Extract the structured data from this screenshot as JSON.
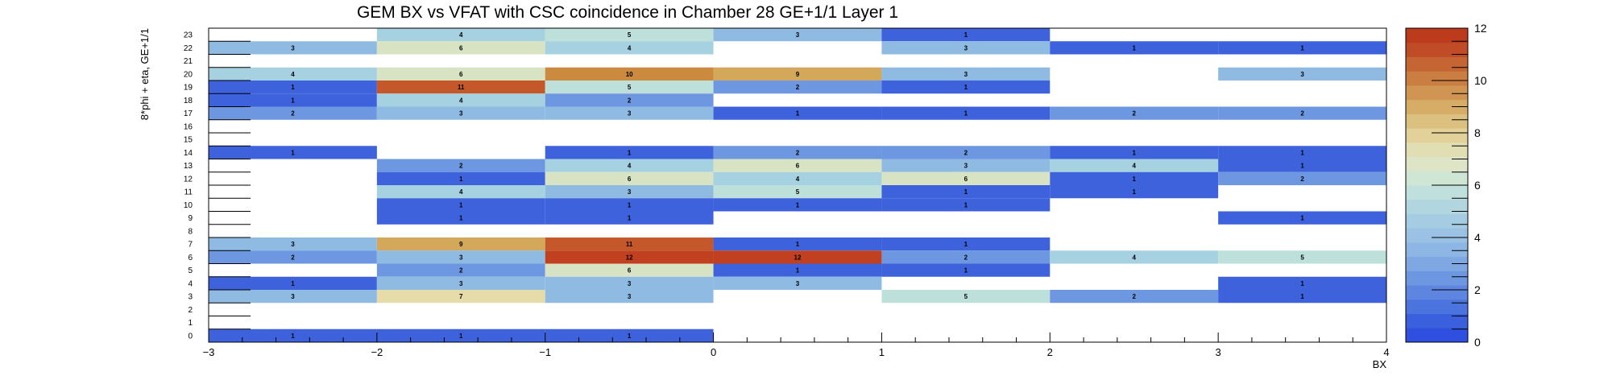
{
  "chart_data": {
    "type": "heatmap",
    "title": "GEM BX vs VFAT with CSC coincidence in Chamber 28 GE+1/1 Layer 1",
    "xlabel": "BX",
    "ylabel": "8*phi + eta, GE+1/1",
    "xlim": [
      -3,
      4
    ],
    "ylim": [
      0,
      24
    ],
    "x_ticks": [
      "−3",
      "−2",
      "−1",
      "0",
      "1",
      "2",
      "3",
      "4"
    ],
    "y_ticks": [
      "0",
      "1",
      "2",
      "3",
      "4",
      "5",
      "6",
      "7",
      "8",
      "9",
      "10",
      "11",
      "12",
      "13",
      "14",
      "15",
      "16",
      "17",
      "18",
      "19",
      "20",
      "21",
      "22",
      "23"
    ],
    "colorbar": {
      "range": [
        0,
        12
      ],
      "ticks": [
        "0",
        "2",
        "4",
        "6",
        "8",
        "10",
        "12"
      ]
    },
    "x_bins": [
      -3,
      -2,
      -1,
      0,
      1,
      2,
      3
    ],
    "x_bin_width": 1,
    "cells": [
      {
        "x": -3,
        "y": 23,
        "v": null
      },
      {
        "x": -2,
        "y": 23,
        "v": 4
      },
      {
        "x": -1,
        "y": 23,
        "v": 5
      },
      {
        "x": 0,
        "y": 23,
        "v": 3
      },
      {
        "x": 1,
        "y": 23,
        "v": 1
      },
      {
        "x": -3,
        "y": 22,
        "v": 3
      },
      {
        "x": -2,
        "y": 22,
        "v": 6
      },
      {
        "x": -1,
        "y": 22,
        "v": 4
      },
      {
        "x": 1,
        "y": 22,
        "v": 3
      },
      {
        "x": 2,
        "y": 22,
        "v": 1
      },
      {
        "x": 3,
        "y": 22,
        "v": 1
      },
      {
        "x": -3,
        "y": 20,
        "v": 4
      },
      {
        "x": -2,
        "y": 20,
        "v": 6
      },
      {
        "x": -1,
        "y": 20,
        "v": 10
      },
      {
        "x": 0,
        "y": 20,
        "v": 9
      },
      {
        "x": 1,
        "y": 20,
        "v": 3
      },
      {
        "x": 3,
        "y": 20,
        "v": 3
      },
      {
        "x": -3,
        "y": 19,
        "v": 1
      },
      {
        "x": -2,
        "y": 19,
        "v": 11
      },
      {
        "x": -1,
        "y": 19,
        "v": 5
      },
      {
        "x": 0,
        "y": 19,
        "v": 2
      },
      {
        "x": 1,
        "y": 19,
        "v": 1
      },
      {
        "x": -3,
        "y": 18,
        "v": 1
      },
      {
        "x": -2,
        "y": 18,
        "v": 4
      },
      {
        "x": -1,
        "y": 18,
        "v": 2
      },
      {
        "x": -3,
        "y": 17,
        "v": 2
      },
      {
        "x": -2,
        "y": 17,
        "v": 3
      },
      {
        "x": -1,
        "y": 17,
        "v": 3
      },
      {
        "x": 0,
        "y": 17,
        "v": 1
      },
      {
        "x": 1,
        "y": 17,
        "v": 1
      },
      {
        "x": 2,
        "y": 17,
        "v": 2
      },
      {
        "x": 3,
        "y": 17,
        "v": 2
      },
      {
        "x": -3,
        "y": 14,
        "v": 1
      },
      {
        "x": -1,
        "y": 14,
        "v": 1
      },
      {
        "x": 0,
        "y": 14,
        "v": 2
      },
      {
        "x": 1,
        "y": 14,
        "v": 2
      },
      {
        "x": 2,
        "y": 14,
        "v": 1
      },
      {
        "x": 3,
        "y": 14,
        "v": 1
      },
      {
        "x": -2,
        "y": 13,
        "v": 2
      },
      {
        "x": -1,
        "y": 13,
        "v": 4
      },
      {
        "x": 0,
        "y": 13,
        "v": 6
      },
      {
        "x": 1,
        "y": 13,
        "v": 3
      },
      {
        "x": 2,
        "y": 13,
        "v": 4
      },
      {
        "x": 3,
        "y": 13,
        "v": 1
      },
      {
        "x": -2,
        "y": 12,
        "v": 1
      },
      {
        "x": -1,
        "y": 12,
        "v": 6
      },
      {
        "x": 0,
        "y": 12,
        "v": 4
      },
      {
        "x": 1,
        "y": 12,
        "v": 6
      },
      {
        "x": 2,
        "y": 12,
        "v": 1
      },
      {
        "x": 3,
        "y": 12,
        "v": 2
      },
      {
        "x": -2,
        "y": 11,
        "v": 4
      },
      {
        "x": -1,
        "y": 11,
        "v": 3
      },
      {
        "x": 0,
        "y": 11,
        "v": 5
      },
      {
        "x": 1,
        "y": 11,
        "v": 1
      },
      {
        "x": 2,
        "y": 11,
        "v": 1
      },
      {
        "x": -2,
        "y": 10,
        "v": 1
      },
      {
        "x": -1,
        "y": 10,
        "v": 1
      },
      {
        "x": 0,
        "y": 10,
        "v": 1
      },
      {
        "x": 1,
        "y": 10,
        "v": 1
      },
      {
        "x": -2,
        "y": 9,
        "v": 1
      },
      {
        "x": -1,
        "y": 9,
        "v": 1
      },
      {
        "x": 3,
        "y": 9,
        "v": 1
      },
      {
        "x": -3,
        "y": 7,
        "v": 3
      },
      {
        "x": -2,
        "y": 7,
        "v": 9
      },
      {
        "x": -1,
        "y": 7,
        "v": 11
      },
      {
        "x": 0,
        "y": 7,
        "v": 1
      },
      {
        "x": 1,
        "y": 7,
        "v": 1
      },
      {
        "x": -3,
        "y": 6,
        "v": 2
      },
      {
        "x": -2,
        "y": 6,
        "v": 3
      },
      {
        "x": -1,
        "y": 6,
        "v": 12
      },
      {
        "x": 0,
        "y": 6,
        "v": 12
      },
      {
        "x": 1,
        "y": 6,
        "v": 2
      },
      {
        "x": 2,
        "y": 6,
        "v": 4
      },
      {
        "x": 3,
        "y": 6,
        "v": 5
      },
      {
        "x": -2,
        "y": 5,
        "v": 2
      },
      {
        "x": -1,
        "y": 5,
        "v": 6
      },
      {
        "x": 0,
        "y": 5,
        "v": 1
      },
      {
        "x": 1,
        "y": 5,
        "v": 1
      },
      {
        "x": -3,
        "y": 4,
        "v": 1
      },
      {
        "x": -2,
        "y": 4,
        "v": 3
      },
      {
        "x": -1,
        "y": 4,
        "v": 3
      },
      {
        "x": 0,
        "y": 4,
        "v": 3
      },
      {
        "x": 3,
        "y": 4,
        "v": 1
      },
      {
        "x": -3,
        "y": 3,
        "v": 3
      },
      {
        "x": -2,
        "y": 3,
        "v": 7
      },
      {
        "x": -1,
        "y": 3,
        "v": 3
      },
      {
        "x": 1,
        "y": 3,
        "v": 5
      },
      {
        "x": 2,
        "y": 3,
        "v": 2
      },
      {
        "x": 3,
        "y": 3,
        "v": 1
      },
      {
        "x": -3,
        "y": 0,
        "v": 1
      },
      {
        "x": -2,
        "y": 0,
        "v": 1
      },
      {
        "x": -1,
        "y": 0,
        "v": 1
      }
    ],
    "colors": {
      "v1": "#3d62db",
      "v2": "#6d97e0",
      "v3": "#8fbbe3",
      "v4": "#a5d1e0",
      "v5": "#bde0da",
      "v6": "#d8e3c4",
      "v7": "#e5dcaa",
      "v9": "#d4a85a",
      "v10": "#cc8a40",
      "v11": "#c5582b",
      "v12": "#c0401f"
    },
    "palette": [
      "#2f4fe0",
      "#3a60dd",
      "#4b74df",
      "#5e86e0",
      "#6e97e1",
      "#7fa7e2",
      "#8eb6e4",
      "#9bc2e4",
      "#a5cce2",
      "#b1d6e0",
      "#bfe0dc",
      "#cfe6d4",
      "#dde5c6",
      "#e2deb3",
      "#e2d198",
      "#dcc07f",
      "#d6ac66",
      "#d09552",
      "#ca7e42",
      "#c46533",
      "#bf4c26",
      "#bc3b1d"
    ]
  }
}
